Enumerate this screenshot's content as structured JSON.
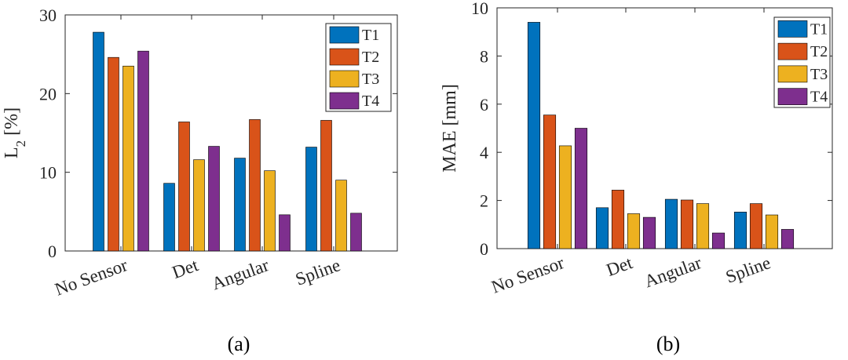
{
  "colors": {
    "T1": "#0072BD",
    "T2": "#D95319",
    "T3": "#EDB120",
    "T4": "#7E2F8E"
  },
  "chart_data": [
    {
      "type": "bar",
      "panel_label": "(a)",
      "title": "",
      "xlabel": "",
      "ylabel_main": "L",
      "ylabel_sub": "2",
      "ylabel_tail": " [%]",
      "ylim": [
        0,
        30
      ],
      "yticks": [
        "0",
        "10",
        "20",
        "30"
      ],
      "grid": false,
      "legend_position": "top-right",
      "categories": [
        "No Sensor",
        "Det",
        "Angular",
        "Spline"
      ],
      "series": [
        {
          "name": "T1",
          "values": [
            27.8,
            8.6,
            11.8,
            13.2
          ]
        },
        {
          "name": "T2",
          "values": [
            24.6,
            16.4,
            16.7,
            16.6
          ]
        },
        {
          "name": "T3",
          "values": [
            23.5,
            11.6,
            10.2,
            9.0
          ]
        },
        {
          "name": "T4",
          "values": [
            25.4,
            13.3,
            4.6,
            4.8
          ]
        }
      ]
    },
    {
      "type": "bar",
      "panel_label": "(b)",
      "title": "",
      "xlabel": "",
      "ylabel_main": "MAE [mm]",
      "ylabel_sub": "",
      "ylabel_tail": "",
      "ylim": [
        0,
        10
      ],
      "yticks": [
        "0",
        "2",
        "4",
        "6",
        "8",
        "10"
      ],
      "grid": false,
      "legend_position": "top-right",
      "categories": [
        "No Sensor",
        "Det",
        "Angular",
        "Spline"
      ],
      "series": [
        {
          "name": "T1",
          "values": [
            9.4,
            1.7,
            2.05,
            1.52
          ]
        },
        {
          "name": "T2",
          "values": [
            5.55,
            2.43,
            2.02,
            1.87
          ]
        },
        {
          "name": "T3",
          "values": [
            4.27,
            1.45,
            1.87,
            1.4
          ]
        },
        {
          "name": "T4",
          "values": [
            5.0,
            1.3,
            0.65,
            0.8
          ]
        }
      ]
    }
  ]
}
